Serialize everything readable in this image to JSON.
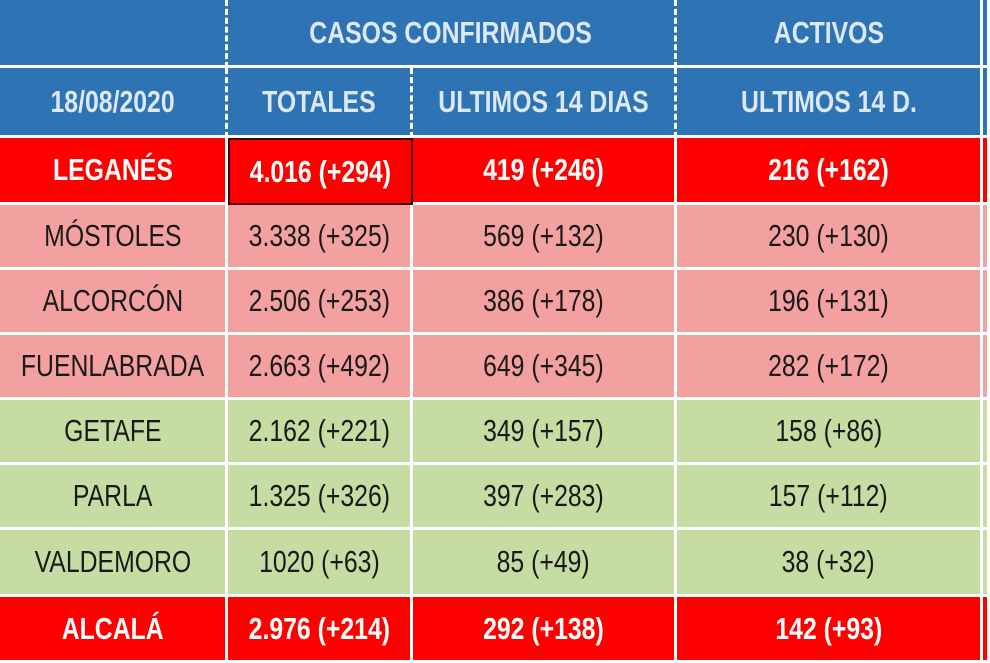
{
  "header": {
    "group_titles": [
      "CASOS  CONFIRMADOS",
      "ACTIVOS"
    ],
    "date": "18/08/2020",
    "columns": [
      "TOTALES",
      "ULTIMOS 14 DIAS",
      "ULTIMOS 14 D."
    ],
    "color": "#2e74b5"
  },
  "table": {
    "rows": [
      {
        "cells": [
          "LEGANÉS",
          "4.016 (+294)",
          "419 (+246)",
          "216 (+162)"
        ],
        "color": "#ff0000"
      },
      {
        "cells": [
          "MÓSTOLES",
          "3.338 (+325)",
          "569 (+132)",
          "230 (+130)"
        ],
        "color": "#f2a0a0"
      },
      {
        "cells": [
          "ALCORCÓN",
          "2.506 (+253)",
          "386 (+178)",
          "196 (+131)"
        ],
        "color": "#f2a0a0"
      },
      {
        "cells": [
          "FUENLABRADA",
          "2.663 (+492)",
          "649 (+345)",
          "282 (+172)"
        ],
        "color": "#f2a0a0"
      },
      {
        "cells": [
          "GETAFE",
          "2.162 (+221)",
          "349 (+157)",
          "158 (+86)"
        ],
        "color": "#c5dca2"
      },
      {
        "cells": [
          "PARLA",
          "1.325 (+326)",
          "397 (+283)",
          "157 (+112)"
        ],
        "color": "#c5dca2"
      },
      {
        "cells": [
          "VALDEMORO",
          "1020 (+63)",
          "85 (+49)",
          "38 (+32)"
        ],
        "color": "#c5dca2"
      },
      {
        "cells": [
          "ALCALÁ",
          "2.976 (+214)",
          "292 (+138)",
          "142 (+93)"
        ],
        "color": "#ff0000"
      }
    ]
  }
}
